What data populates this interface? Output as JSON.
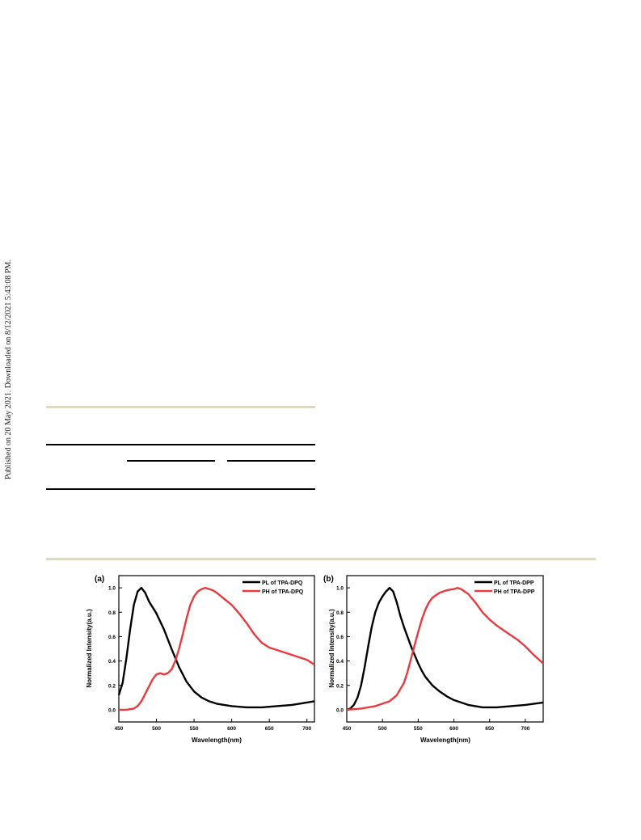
{
  "margin_text": "Published on 20 May 2021. Downloaded on 8/12/2021 5:43:08 PM.",
  "chart_data": [
    {
      "type": "line",
      "panel_label": "(a)",
      "xlabel": "Wavelength(nm)",
      "ylabel": "Normalized Intensity(a.u.)",
      "xlim": [
        450,
        710
      ],
      "ylim": [
        -0.1,
        1.1
      ],
      "xticks": [
        450,
        500,
        550,
        600,
        650,
        700
      ],
      "yticks": [
        0.0,
        0.2,
        0.4,
        0.6,
        0.8,
        1.0
      ],
      "legend_position": "top-right",
      "series": [
        {
          "name": "PL of TPA-DPQ",
          "color": "#000000",
          "x": [
            450,
            455,
            460,
            465,
            470,
            475,
            480,
            485,
            490,
            495,
            500,
            510,
            520,
            530,
            540,
            550,
            560,
            570,
            580,
            600,
            620,
            640,
            660,
            680,
            700,
            710
          ],
          "y": [
            0.12,
            0.22,
            0.42,
            0.66,
            0.86,
            0.97,
            1.0,
            0.96,
            0.89,
            0.84,
            0.79,
            0.66,
            0.5,
            0.35,
            0.23,
            0.15,
            0.1,
            0.07,
            0.05,
            0.03,
            0.02,
            0.02,
            0.03,
            0.04,
            0.06,
            0.07
          ]
        },
        {
          "name": "PH of TPA-DPQ",
          "color": "#e83a3f",
          "x": [
            450,
            460,
            470,
            475,
            480,
            485,
            490,
            495,
            500,
            505,
            510,
            515,
            520,
            525,
            530,
            535,
            540,
            545,
            550,
            555,
            560,
            565,
            570,
            575,
            580,
            590,
            600,
            610,
            620,
            630,
            640,
            650,
            660,
            670,
            680,
            690,
            700,
            710
          ],
          "y": [
            0.0,
            0.0,
            0.01,
            0.03,
            0.07,
            0.13,
            0.19,
            0.25,
            0.29,
            0.3,
            0.29,
            0.3,
            0.33,
            0.4,
            0.5,
            0.62,
            0.75,
            0.86,
            0.93,
            0.97,
            0.99,
            1.0,
            0.99,
            0.98,
            0.96,
            0.91,
            0.86,
            0.79,
            0.71,
            0.62,
            0.55,
            0.51,
            0.49,
            0.47,
            0.45,
            0.43,
            0.41,
            0.37
          ]
        }
      ]
    },
    {
      "type": "line",
      "panel_label": "(b)",
      "xlabel": "Wavelength(nm)",
      "ylabel": "Normalized Intensity(a.u.)",
      "xlim": [
        450,
        725
      ],
      "ylim": [
        -0.1,
        1.1
      ],
      "xticks": [
        450,
        500,
        550,
        600,
        650,
        700
      ],
      "yticks": [
        0.0,
        0.2,
        0.4,
        0.6,
        0.8,
        1.0
      ],
      "legend_position": "top-right",
      "series": [
        {
          "name": "PL of TPA-DPP",
          "color": "#000000",
          "x": [
            450,
            455,
            460,
            465,
            470,
            475,
            480,
            485,
            490,
            495,
            500,
            505,
            510,
            515,
            520,
            525,
            530,
            535,
            540,
            545,
            550,
            555,
            560,
            570,
            580,
            590,
            600,
            620,
            640,
            660,
            680,
            700,
            725
          ],
          "y": [
            0.0,
            0.01,
            0.04,
            0.1,
            0.2,
            0.35,
            0.52,
            0.68,
            0.8,
            0.88,
            0.93,
            0.97,
            1.0,
            0.97,
            0.88,
            0.77,
            0.68,
            0.6,
            0.52,
            0.45,
            0.38,
            0.32,
            0.27,
            0.2,
            0.15,
            0.11,
            0.08,
            0.04,
            0.02,
            0.02,
            0.03,
            0.04,
            0.06
          ]
        },
        {
          "name": "PH of TPA-DPP",
          "color": "#e83a3f",
          "x": [
            450,
            470,
            480,
            490,
            500,
            510,
            520,
            530,
            535,
            540,
            545,
            550,
            555,
            560,
            565,
            570,
            575,
            580,
            590,
            600,
            605,
            610,
            620,
            630,
            640,
            650,
            660,
            670,
            680,
            690,
            700,
            710,
            725
          ],
          "y": [
            0.0,
            0.01,
            0.02,
            0.03,
            0.05,
            0.07,
            0.12,
            0.22,
            0.31,
            0.42,
            0.53,
            0.64,
            0.74,
            0.82,
            0.88,
            0.92,
            0.94,
            0.96,
            0.98,
            0.99,
            1.0,
            0.99,
            0.95,
            0.88,
            0.8,
            0.74,
            0.69,
            0.65,
            0.61,
            0.57,
            0.52,
            0.46,
            0.38
          ]
        }
      ]
    }
  ]
}
